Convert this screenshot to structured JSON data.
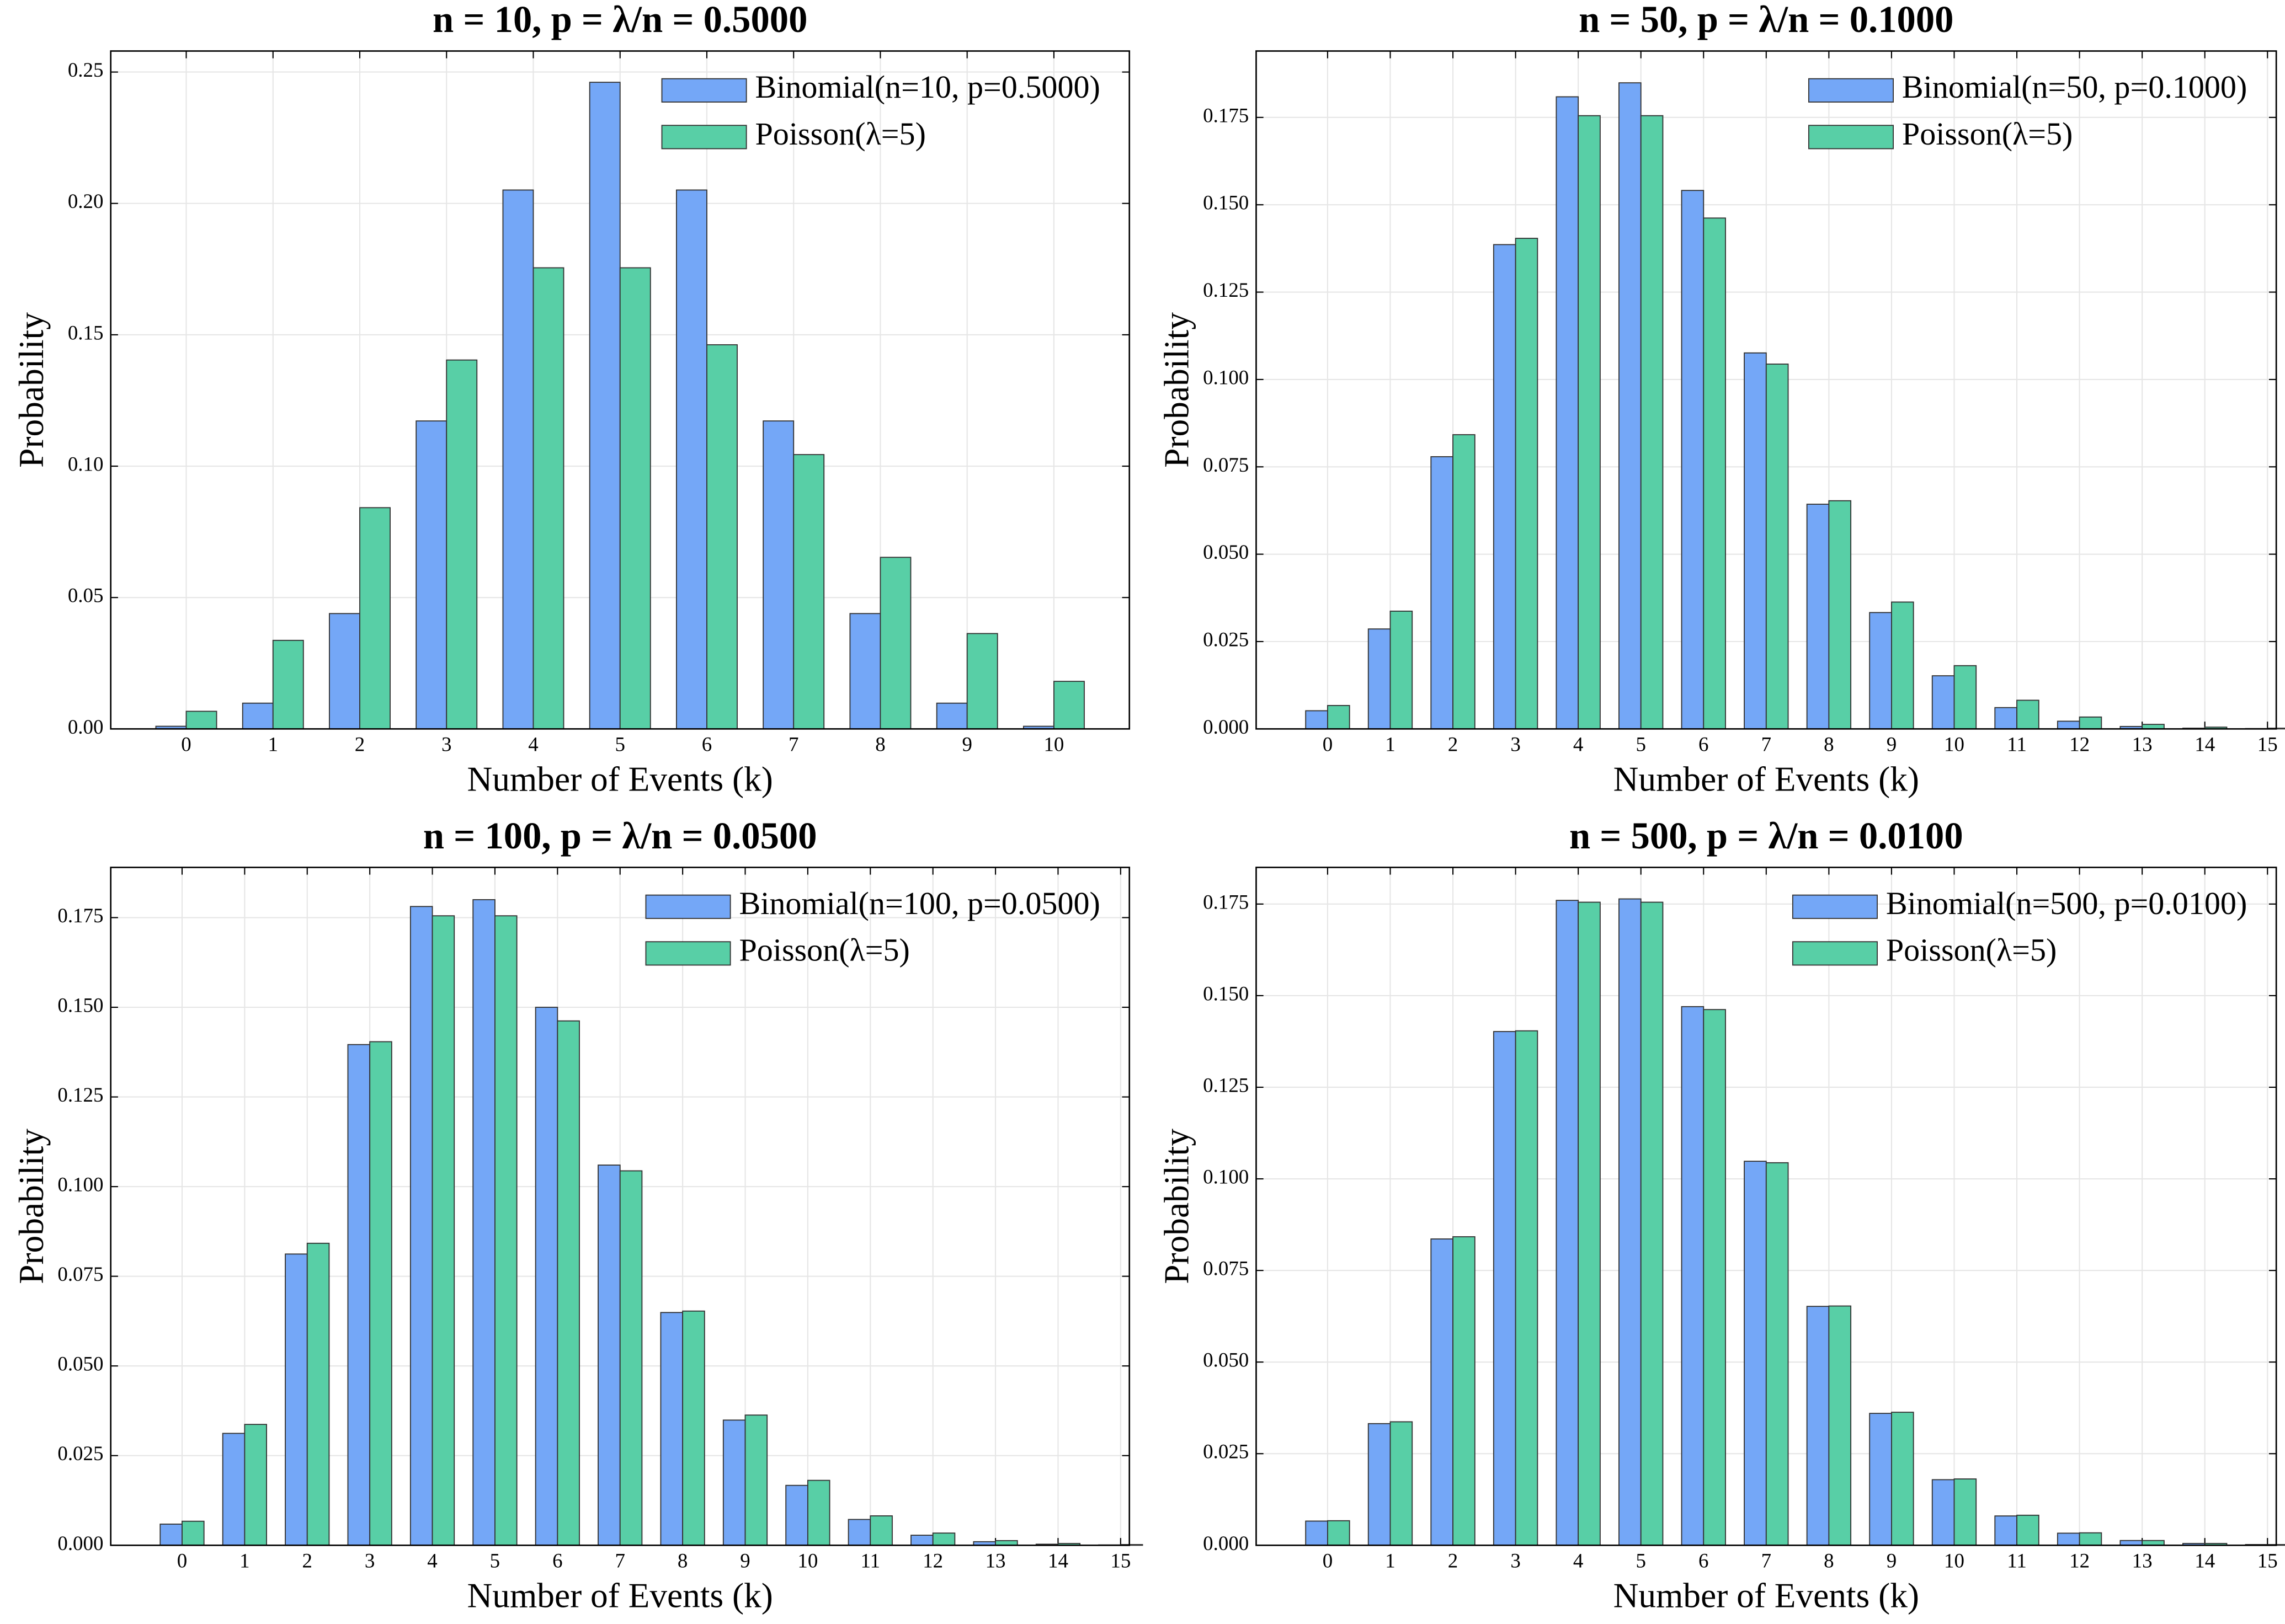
{
  "chart_data": [
    {
      "type": "bar",
      "title": "n = 10, p = λ/n = 0.5000",
      "xlabel": "Number of Events (k)",
      "ylabel": "Probability",
      "x": [
        0,
        1,
        2,
        3,
        4,
        5,
        6,
        7,
        8,
        9,
        10
      ],
      "series": [
        {
          "name": "Binomial(n=10, p=0.5000)",
          "color": "#74a7f7",
          "values": [
            0.001,
            0.0098,
            0.0439,
            0.1172,
            0.2051,
            0.2461,
            0.2051,
            0.1172,
            0.0439,
            0.0098,
            0.001
          ]
        },
        {
          "name": "Poisson(λ=5)",
          "color": "#58cfa6",
          "values": [
            0.0067,
            0.0337,
            0.0842,
            0.1404,
            0.1755,
            0.1755,
            0.1462,
            0.1044,
            0.0653,
            0.0363,
            0.0181
          ]
        }
      ],
      "xlim": [
        -0.87,
        10.87
      ],
      "ylim": [
        0,
        0.258
      ],
      "xticks": [
        0,
        1,
        2,
        3,
        4,
        5,
        6,
        7,
        8,
        9,
        10
      ],
      "yticks": [
        {
          "value": 0,
          "label": "0.00"
        },
        {
          "value": 0.05,
          "label": "0.05"
        },
        {
          "value": 0.1,
          "label": "0.10"
        },
        {
          "value": 0.15,
          "label": "0.15"
        },
        {
          "value": 0.2,
          "label": "0.20"
        },
        {
          "value": 0.25,
          "label": "0.25"
        }
      ],
      "grid": true,
      "legend": "upper right"
    },
    {
      "type": "bar",
      "title": "n = 50, p = λ/n = 0.1000",
      "xlabel": "Number of Events (k)",
      "ylabel": "Probability",
      "x": [
        0,
        1,
        2,
        3,
        4,
        5,
        6,
        7,
        8,
        9,
        10,
        11,
        12,
        13,
        14,
        15
      ],
      "series": [
        {
          "name": "Binomial(n=50, p=0.1000)",
          "color": "#74a7f7",
          "values": [
            0.0052,
            0.0286,
            0.0779,
            0.1386,
            0.1809,
            0.1849,
            0.1541,
            0.1076,
            0.0643,
            0.0333,
            0.0152,
            0.0061,
            0.0022,
            0.0007,
            0.0002,
            0.0001
          ]
        },
        {
          "name": "Poisson(λ=5)",
          "color": "#58cfa6",
          "values": [
            0.0067,
            0.0337,
            0.0842,
            0.1404,
            0.1755,
            0.1755,
            0.1462,
            0.1044,
            0.0653,
            0.0363,
            0.0181,
            0.0082,
            0.0034,
            0.0013,
            0.0005,
            0.0002
          ]
        }
      ],
      "xlim": [
        -1.14,
        15.14
      ],
      "ylim": [
        0,
        0.194
      ],
      "xticks": [
        0,
        1,
        2,
        3,
        4,
        5,
        6,
        7,
        8,
        9,
        10,
        11,
        12,
        13,
        14,
        15
      ],
      "yticks": [
        {
          "value": 0,
          "label": "0.000"
        },
        {
          "value": 0.025,
          "label": "0.025"
        },
        {
          "value": 0.05,
          "label": "0.050"
        },
        {
          "value": 0.075,
          "label": "0.075"
        },
        {
          "value": 0.1,
          "label": "0.100"
        },
        {
          "value": 0.125,
          "label": "0.125"
        },
        {
          "value": 0.15,
          "label": "0.150"
        },
        {
          "value": 0.175,
          "label": "0.175"
        }
      ],
      "grid": true,
      "legend": "upper right"
    },
    {
      "type": "bar",
      "title": "n = 100, p = λ/n = 0.0500",
      "xlabel": "Number of Events (k)",
      "ylabel": "Probability",
      "x": [
        0,
        1,
        2,
        3,
        4,
        5,
        6,
        7,
        8,
        9,
        10,
        11,
        12,
        13,
        14,
        15
      ],
      "series": [
        {
          "name": "Binomial(n=100, p=0.0500)",
          "color": "#74a7f7",
          "values": [
            0.0059,
            0.0312,
            0.0812,
            0.1396,
            0.1781,
            0.18,
            0.15,
            0.106,
            0.0649,
            0.0349,
            0.0167,
            0.0072,
            0.0028,
            0.001,
            0.0003,
            0.0001
          ]
        },
        {
          "name": "Poisson(λ=5)",
          "color": "#58cfa6",
          "values": [
            0.0067,
            0.0337,
            0.0842,
            0.1404,
            0.1755,
            0.1755,
            0.1462,
            0.1044,
            0.0653,
            0.0363,
            0.0181,
            0.0082,
            0.0034,
            0.0013,
            0.0005,
            0.0002
          ]
        }
      ],
      "xlim": [
        -1.14,
        15.14
      ],
      "ylim": [
        0,
        0.189
      ],
      "xticks": [
        0,
        1,
        2,
        3,
        4,
        5,
        6,
        7,
        8,
        9,
        10,
        11,
        12,
        13,
        14,
        15
      ],
      "yticks": [
        {
          "value": 0,
          "label": "0.000"
        },
        {
          "value": 0.025,
          "label": "0.025"
        },
        {
          "value": 0.05,
          "label": "0.050"
        },
        {
          "value": 0.075,
          "label": "0.075"
        },
        {
          "value": 0.1,
          "label": "0.100"
        },
        {
          "value": 0.125,
          "label": "0.125"
        },
        {
          "value": 0.15,
          "label": "0.150"
        },
        {
          "value": 0.175,
          "label": "0.175"
        }
      ],
      "grid": true,
      "legend": "upper right"
    },
    {
      "type": "bar",
      "title": "n = 500, p = λ/n = 0.0100",
      "xlabel": "Number of Events (k)",
      "ylabel": "Probability",
      "x": [
        0,
        1,
        2,
        3,
        4,
        5,
        6,
        7,
        8,
        9,
        10,
        11,
        12,
        13,
        14,
        15
      ],
      "series": [
        {
          "name": "Binomial(n=500, p=0.0100)",
          "color": "#74a7f7",
          "values": [
            0.0066,
            0.0332,
            0.0836,
            0.1402,
            0.176,
            0.1764,
            0.147,
            0.1048,
            0.0652,
            0.036,
            0.0179,
            0.008,
            0.0033,
            0.0013,
            0.0005,
            0.0002
          ]
        },
        {
          "name": "Poisson(λ=5)",
          "color": "#58cfa6",
          "values": [
            0.0067,
            0.0337,
            0.0842,
            0.1404,
            0.1755,
            0.1755,
            0.1462,
            0.1044,
            0.0653,
            0.0363,
            0.0181,
            0.0082,
            0.0034,
            0.0013,
            0.0005,
            0.0002
          ]
        }
      ],
      "xlim": [
        -1.14,
        15.14
      ],
      "ylim": [
        0,
        0.185
      ],
      "xticks": [
        0,
        1,
        2,
        3,
        4,
        5,
        6,
        7,
        8,
        9,
        10,
        11,
        12,
        13,
        14,
        15
      ],
      "yticks": [
        {
          "value": 0,
          "label": "0.000"
        },
        {
          "value": 0.025,
          "label": "0.025"
        },
        {
          "value": 0.05,
          "label": "0.050"
        },
        {
          "value": 0.075,
          "label": "0.075"
        },
        {
          "value": 0.1,
          "label": "0.100"
        },
        {
          "value": 0.125,
          "label": "0.125"
        },
        {
          "value": 0.15,
          "label": "0.150"
        },
        {
          "value": 0.175,
          "label": "0.175"
        }
      ],
      "grid": true,
      "legend": "upper right"
    }
  ]
}
